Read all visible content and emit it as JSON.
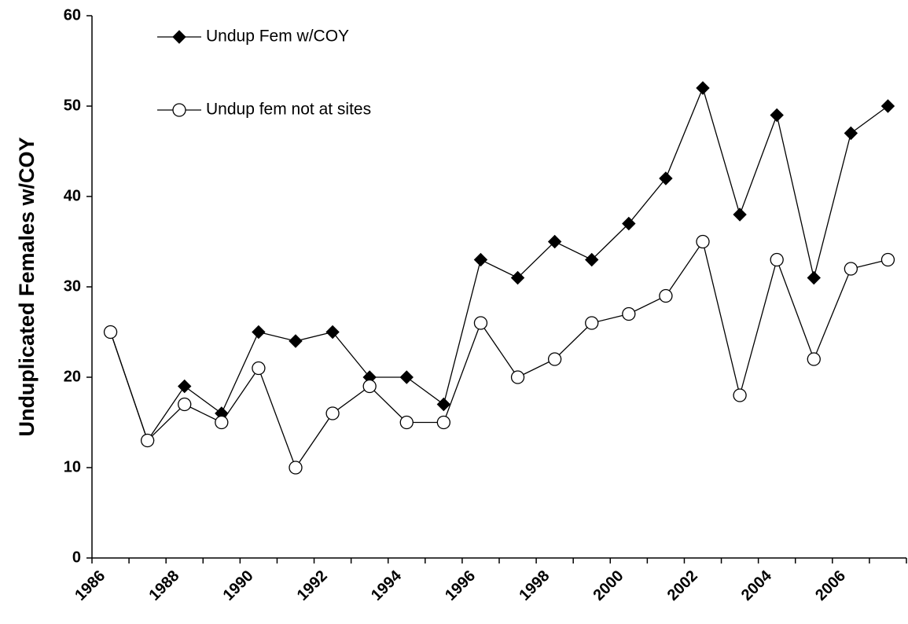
{
  "chart_data": {
    "type": "line",
    "y_label": "Unduplicated Females w/COY",
    "categories": [
      "1986",
      null,
      "1988",
      null,
      "1990",
      null,
      "1992",
      null,
      "1994",
      null,
      "1996",
      null,
      "1998",
      null,
      "2000",
      null,
      "2002",
      null,
      "2004",
      null,
      "2006",
      null
    ],
    "series": [
      {
        "name": "Undup Fem w/COY",
        "color": "#000000",
        "marker": "diamond",
        "values": [
          25,
          13,
          19,
          16,
          25,
          24,
          25,
          20,
          20,
          17,
          33,
          31,
          35,
          33,
          37,
          42,
          52,
          38,
          49,
          31,
          47,
          50
        ]
      },
      {
        "name": "Undup fem not at sites",
        "color": "#000000",
        "marker": "circle",
        "values": [
          25,
          13,
          17,
          15,
          21,
          10,
          16,
          19,
          15,
          15,
          26,
          20,
          22,
          26,
          27,
          29,
          35,
          18,
          33,
          22,
          32,
          33
        ]
      }
    ],
    "ylim": [
      0,
      60
    ],
    "yticks": [
      0,
      10,
      20,
      30,
      40,
      50,
      60
    ],
    "grid": false
  }
}
